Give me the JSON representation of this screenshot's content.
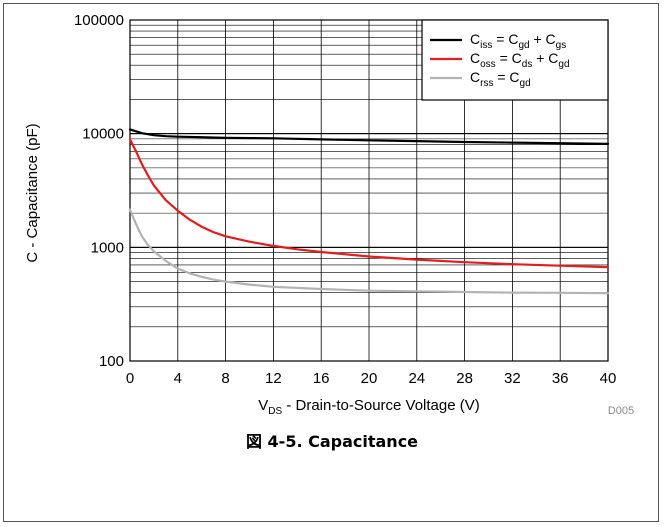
{
  "chart_data": {
    "type": "line",
    "xlabel": {
      "main": "V",
      "sub": "DS",
      "rest": " - Drain-to-Source Voltage (V)"
    },
    "ylabel": "C - Capacitance (pF)",
    "xlim": [
      0,
      40
    ],
    "ylim": [
      100,
      100000
    ],
    "yscale": "log",
    "x_ticks": [
      0,
      4,
      8,
      12,
      16,
      20,
      24,
      28,
      32,
      36,
      40
    ],
    "y_ticks": [
      100,
      1000,
      10000,
      100000
    ],
    "grid": true,
    "legend_position": "top-right",
    "series": [
      {
        "color": "#000000",
        "legend": {
          "c": "C",
          "sub": "iss",
          "eq": " = C",
          "sub2": "gd",
          "plus": " + C",
          "sub3": "gs"
        },
        "x": [
          0,
          0.5,
          1,
          2,
          3,
          4,
          6,
          8,
          10,
          12,
          16,
          20,
          24,
          28,
          32,
          36,
          40
        ],
        "y": [
          10900,
          10500,
          10100,
          9700,
          9500,
          9400,
          9300,
          9200,
          9150,
          9100,
          8900,
          8750,
          8600,
          8450,
          8350,
          8250,
          8150
        ]
      },
      {
        "color": "#e41c1c",
        "legend": {
          "c": "C",
          "sub": "oss",
          "eq": " = C",
          "sub2": "ds",
          "plus": " + C",
          "sub3": "gd"
        },
        "x": [
          0,
          0.5,
          1,
          1.5,
          2,
          3,
          4,
          5,
          6,
          7,
          8,
          10,
          12,
          14,
          16,
          20,
          24,
          28,
          32,
          36,
          40
        ],
        "y": [
          8900,
          7000,
          5400,
          4300,
          3500,
          2600,
          2100,
          1750,
          1520,
          1360,
          1250,
          1120,
          1030,
          960,
          910,
          830,
          780,
          740,
          710,
          690,
          670
        ]
      },
      {
        "color": "#b3b3b3",
        "legend": {
          "c": "C",
          "sub": "rss",
          "eq": " = C",
          "sub2": "gd",
          "plus": "",
          "sub3": ""
        },
        "x": [
          0,
          0.5,
          1,
          1.5,
          2,
          3,
          4,
          5,
          6,
          7,
          8,
          10,
          12,
          16,
          20,
          24,
          28,
          32,
          36,
          40
        ],
        "y": [
          2150,
          1600,
          1250,
          1050,
          920,
          760,
          650,
          590,
          550,
          520,
          500,
          470,
          450,
          430,
          415,
          410,
          405,
          400,
          398,
          395
        ]
      }
    ],
    "code_label": "D005",
    "caption": "図 4-5. Capacitance"
  }
}
